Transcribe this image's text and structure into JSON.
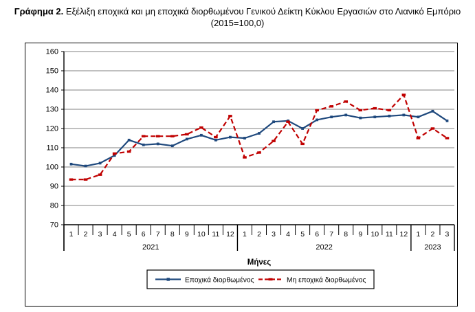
{
  "page": {
    "title_prefix": "Γράφημα 2.",
    "title_rest": " Εξέλιξη εποχικά και μη εποχικά διορθωμένου Γενικού Δείκτη Κύκλου Εργασιών στο Λιανικό Εμπόριο",
    "title_line2": "(2015=100,0)"
  },
  "chart_data": {
    "type": "line",
    "title": "Γράφημα 2. Εξέλιξη εποχικά και μη εποχικά διορθωμένου Γενικού Δείκτη Κύκλου Εργασιών στο Λιανικό Εμπόριο (2015=100,0)",
    "x_axis_title": "Μήνες",
    "ylabel": "",
    "ylim": [
      70,
      160
    ],
    "y_ticks": [
      160,
      150,
      140,
      130,
      120,
      110,
      100,
      90,
      80,
      70
    ],
    "grid": "horizontal",
    "legend_position": "bottom",
    "colors": {
      "grid": "#808080",
      "axis": "#000000"
    },
    "x_groups": [
      {
        "year": "2021",
        "months": [
          1,
          2,
          3,
          4,
          5,
          6,
          7,
          8,
          9,
          10,
          11,
          12
        ]
      },
      {
        "year": "2022",
        "months": [
          1,
          2,
          3,
          4,
          5,
          6,
          7,
          8,
          9,
          10,
          11,
          12
        ]
      },
      {
        "year": "2023",
        "months": [
          1,
          2,
          3
        ]
      }
    ],
    "series": [
      {
        "name": "Εποχικά διορθωμένος",
        "style": "solid",
        "color": "#1F497D",
        "values": [
          101.5,
          100.5,
          102,
          106,
          114,
          111.5,
          112,
          111,
          114.5,
          116.5,
          114,
          115.5,
          115,
          117.5,
          123.5,
          124,
          120,
          124.5,
          126,
          127,
          125.5,
          126,
          126.5,
          127,
          126,
          129,
          124
        ]
      },
      {
        "name": "Μη εποχικά διορθωμένος",
        "style": "dashed",
        "color": "#C00000",
        "values": [
          93.5,
          93.5,
          96,
          107,
          108,
          116,
          116,
          116,
          117,
          120.5,
          115.5,
          126.5,
          105,
          107.5,
          113.5,
          123.5,
          112,
          129.5,
          131.5,
          134,
          129.5,
          130.5,
          129.5,
          137.5,
          115,
          120,
          115
        ]
      }
    ]
  }
}
